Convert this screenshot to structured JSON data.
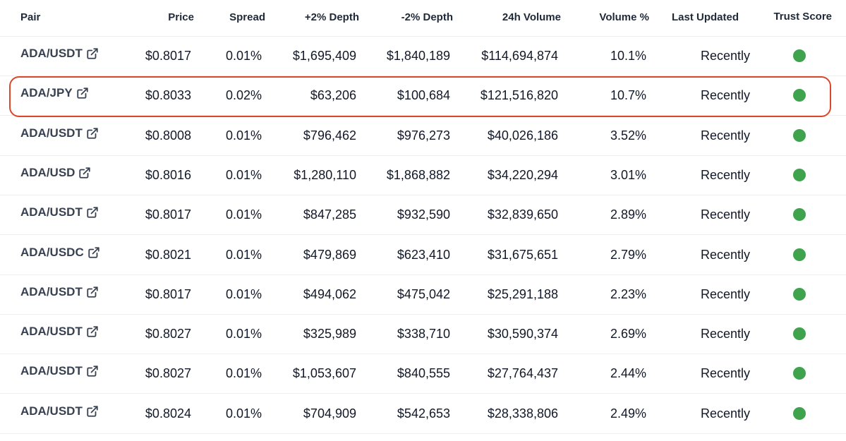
{
  "columns": {
    "pair": "Pair",
    "price": "Price",
    "spread": "Spread",
    "depth_plus": "+2% Depth",
    "depth_minus": "-2% Depth",
    "volume": "24h Volume",
    "volume_pct": "Volume %",
    "last_updated": "Last Updated",
    "trust_score": "Trust Score"
  },
  "rows": [
    {
      "pair": "ADA/USDT",
      "price": "$0.8017",
      "spread": "0.01%",
      "depth_plus": "$1,695,409",
      "depth_minus": "$1,840,189",
      "volume": "$114,694,874",
      "volume_pct": "10.1%",
      "last_updated": "Recently",
      "trust": "green"
    },
    {
      "pair": "ADA/JPY",
      "price": "$0.8033",
      "spread": "0.02%",
      "depth_plus": "$63,206",
      "depth_minus": "$100,684",
      "volume": "$121,516,820",
      "volume_pct": "10.7%",
      "last_updated": "Recently",
      "trust": "green"
    },
    {
      "pair": "ADA/USDT",
      "price": "$0.8008",
      "spread": "0.01%",
      "depth_plus": "$796,462",
      "depth_minus": "$976,273",
      "volume": "$40,026,186",
      "volume_pct": "3.52%",
      "last_updated": "Recently",
      "trust": "green"
    },
    {
      "pair": "ADA/USD",
      "price": "$0.8016",
      "spread": "0.01%",
      "depth_plus": "$1,280,110",
      "depth_minus": "$1,868,882",
      "volume": "$34,220,294",
      "volume_pct": "3.01%",
      "last_updated": "Recently",
      "trust": "green"
    },
    {
      "pair": "ADA/USDT",
      "price": "$0.8017",
      "spread": "0.01%",
      "depth_plus": "$847,285",
      "depth_minus": "$932,590",
      "volume": "$32,839,650",
      "volume_pct": "2.89%",
      "last_updated": "Recently",
      "trust": "green"
    },
    {
      "pair": "ADA/USDC",
      "price": "$0.8021",
      "spread": "0.01%",
      "depth_plus": "$479,869",
      "depth_minus": "$623,410",
      "volume": "$31,675,651",
      "volume_pct": "2.79%",
      "last_updated": "Recently",
      "trust": "green"
    },
    {
      "pair": "ADA/USDT",
      "price": "$0.8017",
      "spread": "0.01%",
      "depth_plus": "$494,062",
      "depth_minus": "$475,042",
      "volume": "$25,291,188",
      "volume_pct": "2.23%",
      "last_updated": "Recently",
      "trust": "green"
    },
    {
      "pair": "ADA/USDT",
      "price": "$0.8027",
      "spread": "0.01%",
      "depth_plus": "$325,989",
      "depth_minus": "$338,710",
      "volume": "$30,590,374",
      "volume_pct": "2.69%",
      "last_updated": "Recently",
      "trust": "green"
    },
    {
      "pair": "ADA/USDT",
      "price": "$0.8027",
      "spread": "0.01%",
      "depth_plus": "$1,053,607",
      "depth_minus": "$840,555",
      "volume": "$27,764,437",
      "volume_pct": "2.44%",
      "last_updated": "Recently",
      "trust": "green"
    },
    {
      "pair": "ADA/USDT",
      "price": "$0.8024",
      "spread": "0.01%",
      "depth_plus": "$704,909",
      "depth_minus": "$542,653",
      "volume": "$28,338,806",
      "volume_pct": "2.49%",
      "last_updated": "Recently",
      "trust": "green"
    }
  ],
  "icons": {
    "external_link": "external-link-icon",
    "trust_dot": "trust-score-dot-icon"
  },
  "colors": {
    "trust_green": "#3fa34d",
    "highlight_border": "#d9482b"
  }
}
